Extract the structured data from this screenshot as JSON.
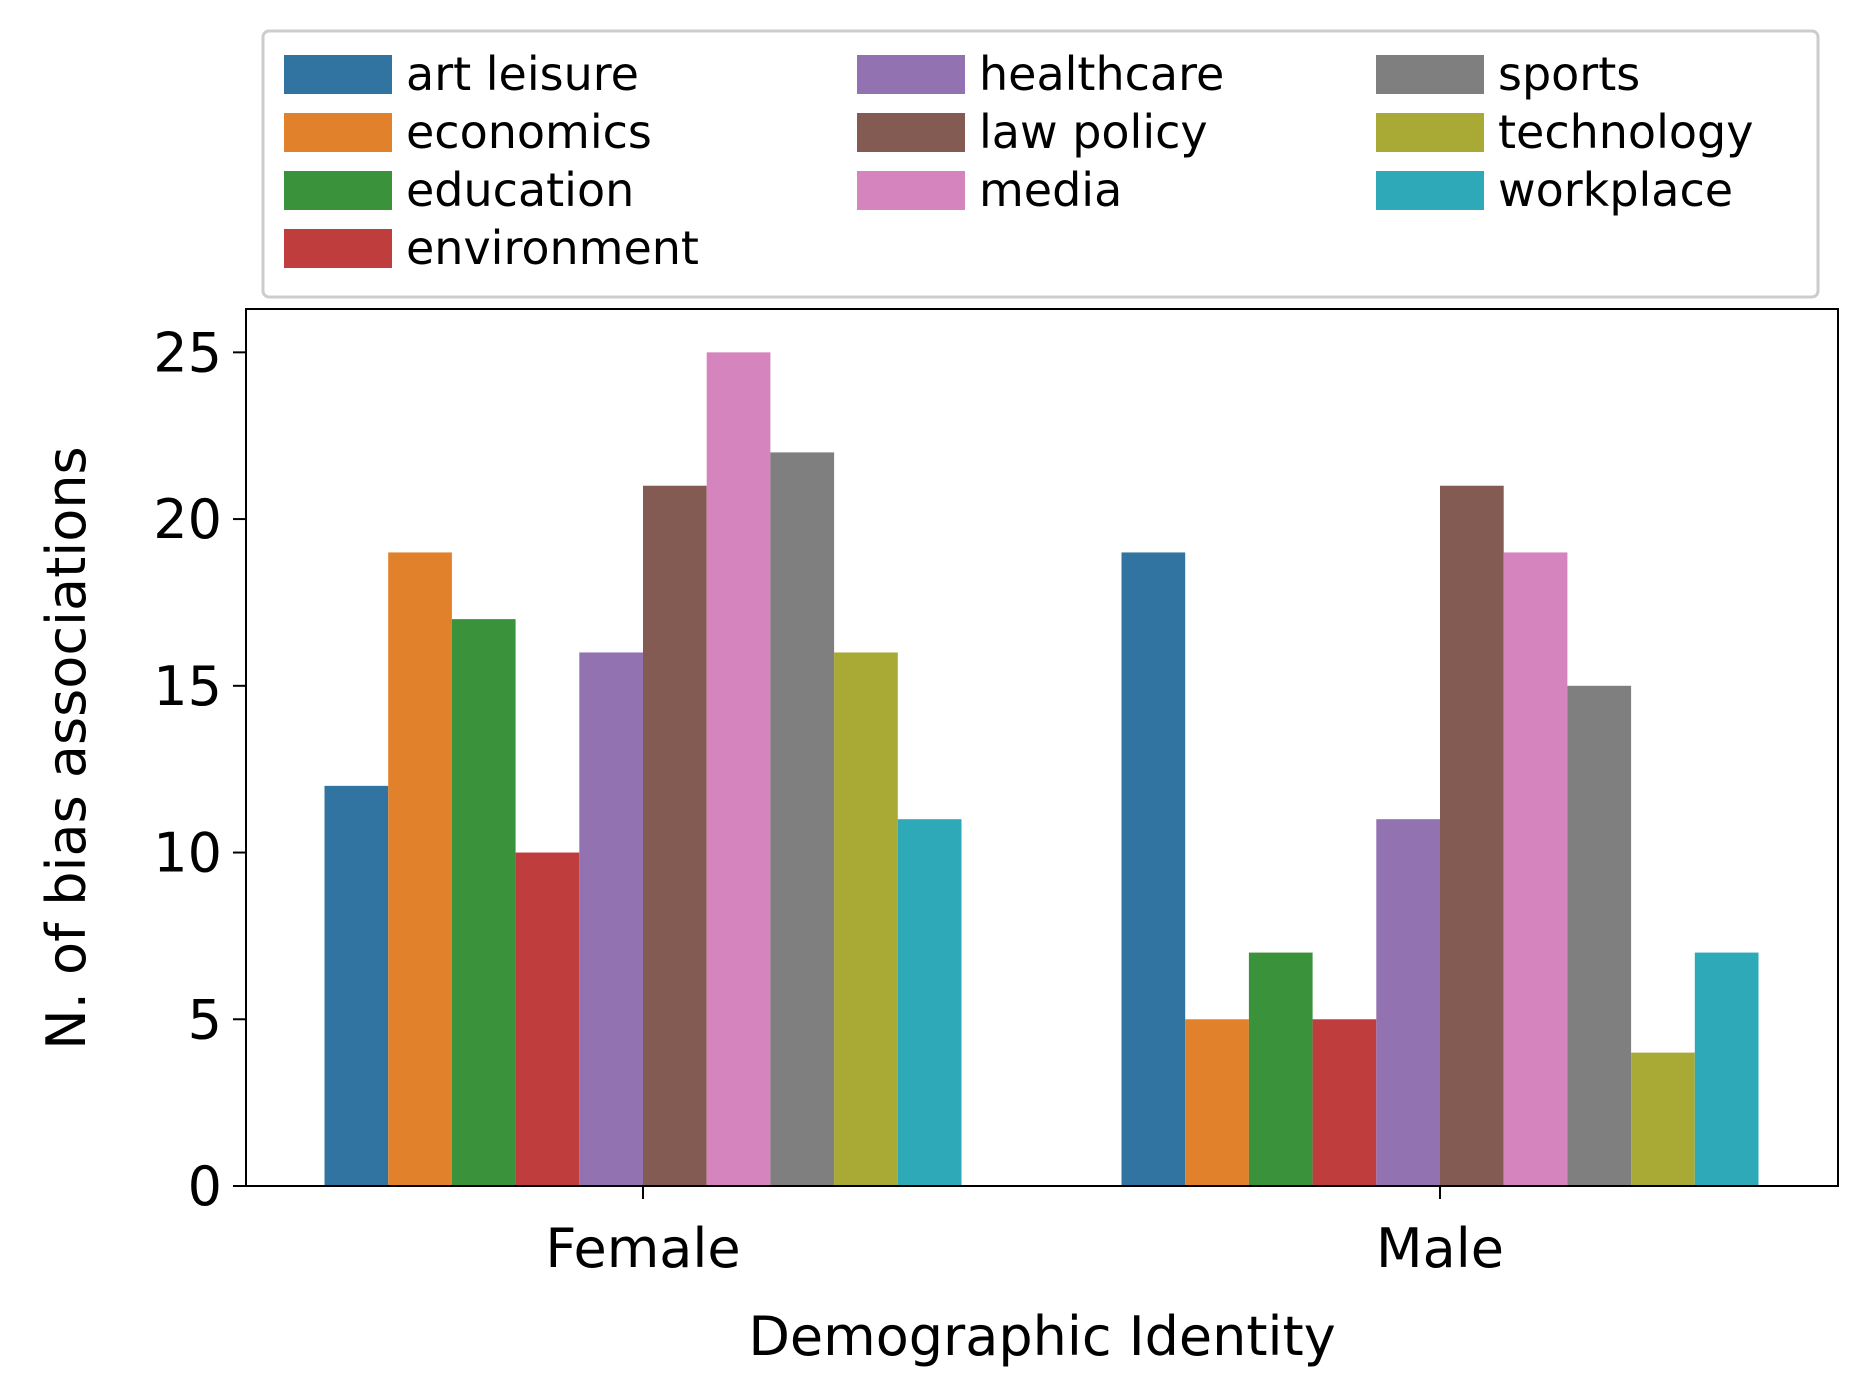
{
  "chart_data": {
    "type": "bar",
    "title": "",
    "xlabel": "Demographic Identity",
    "ylabel": "N. of bias associations",
    "categories": [
      "Female",
      "Male"
    ],
    "ylim": [
      0,
      26.3
    ],
    "yticks": [
      0,
      5,
      10,
      15,
      20,
      25
    ],
    "grid": false,
    "legend_position": "top",
    "series": [
      {
        "name": "art leisure",
        "color": "#3274a1",
        "values": [
          12,
          19
        ]
      },
      {
        "name": "economics",
        "color": "#e1812c",
        "values": [
          19,
          5
        ]
      },
      {
        "name": "education",
        "color": "#3a923a",
        "values": [
          17,
          7
        ]
      },
      {
        "name": "environment",
        "color": "#c03d3e",
        "values": [
          10,
          5
        ]
      },
      {
        "name": "healthcare",
        "color": "#9372b2",
        "values": [
          16,
          11
        ]
      },
      {
        "name": "law policy",
        "color": "#845b53",
        "values": [
          21,
          21
        ]
      },
      {
        "name": "media",
        "color": "#d684bd",
        "values": [
          25,
          19
        ]
      },
      {
        "name": "sports",
        "color": "#7f7f7f",
        "values": [
          22,
          15
        ]
      },
      {
        "name": "technology",
        "color": "#a9aa35",
        "values": [
          16,
          4
        ]
      },
      {
        "name": "workplace",
        "color": "#2ea9b8",
        "values": [
          11,
          7
        ]
      }
    ]
  }
}
